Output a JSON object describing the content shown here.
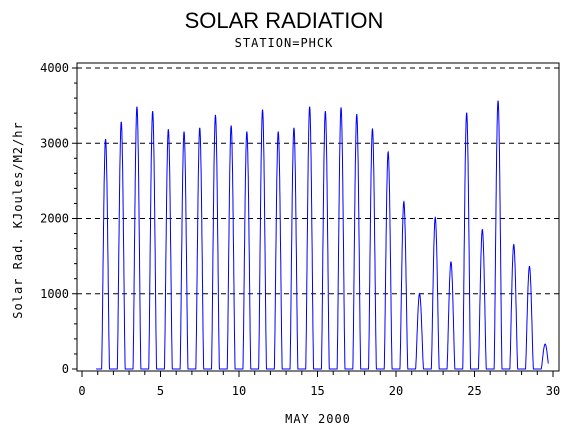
{
  "chart_data": {
    "type": "line",
    "title": "SOLAR RADIATION",
    "subtitle": "STATION=PHCK",
    "xlabel": "MAY 2000",
    "ylabel": "Solar Rad. KJoules/M2/hr",
    "xlim": [
      0,
      30
    ],
    "ylim": [
      0,
      4000
    ],
    "x_ticks": [
      "0",
      "5",
      "10",
      "15",
      "20",
      "25",
      "30"
    ],
    "y_ticks": [
      "0",
      "1000",
      "2000",
      "3000",
      "4000"
    ],
    "grid": "horizontal-dashed",
    "series": [
      {
        "color": "#0000ff",
        "daily_peaks": [
          {
            "day": 1,
            "peak": 3050
          },
          {
            "day": 2,
            "peak": 3280
          },
          {
            "day": 3,
            "peak": 3480
          },
          {
            "day": 4,
            "peak": 3420
          },
          {
            "day": 5,
            "peak": 3180
          },
          {
            "day": 6,
            "peak": 3150
          },
          {
            "day": 7,
            "peak": 3200
          },
          {
            "day": 8,
            "peak": 3370
          },
          {
            "day": 9,
            "peak": 3230
          },
          {
            "day": 10,
            "peak": 3150
          },
          {
            "day": 11,
            "peak": 3440
          },
          {
            "day": 12,
            "peak": 3150
          },
          {
            "day": 13,
            "peak": 3200
          },
          {
            "day": 14,
            "peak": 3480
          },
          {
            "day": 15,
            "peak": 3420
          },
          {
            "day": 16,
            "peak": 3470
          },
          {
            "day": 17,
            "peak": 3380
          },
          {
            "day": 18,
            "peak": 3190
          },
          {
            "day": 19,
            "peak": 2880
          },
          {
            "day": 20,
            "peak": 2220
          },
          {
            "day": 21,
            "peak": 1000
          },
          {
            "day": 22,
            "peak": 2010
          },
          {
            "day": 23,
            "peak": 1420
          },
          {
            "day": 24,
            "peak": 3400
          },
          {
            "day": 25,
            "peak": 1850
          },
          {
            "day": 26,
            "peak": 3560
          },
          {
            "day": 27,
            "peak": 1650
          },
          {
            "day": 28,
            "peak": 1360
          },
          {
            "day": 29,
            "peak": 330
          }
        ]
      }
    ]
  }
}
